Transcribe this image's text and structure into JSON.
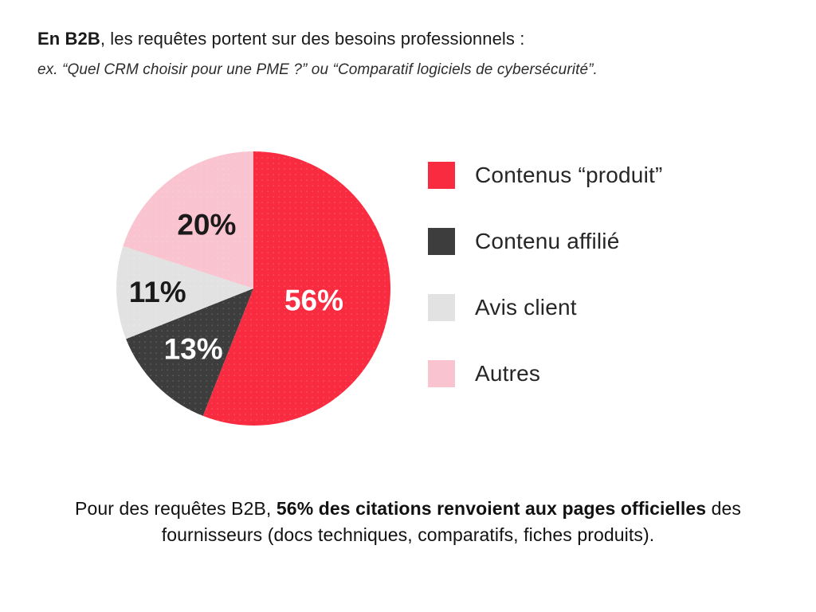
{
  "header": {
    "title_bold": "En B2B",
    "title_rest": ", les requêtes portent sur des besoins professionnels :",
    "subtitle": "ex. “Quel CRM choisir pour une PME ?” ou “Comparatif logiciels de cybersécurité”."
  },
  "chart_data": {
    "type": "pie",
    "direction": "clockwise",
    "start_angle_deg": 0,
    "legend_position": "right",
    "value_suffix": "%",
    "slices": [
      {
        "label": "Contenus “produit”",
        "value": 56,
        "color": "#F92B40",
        "label_color": "#ffffff",
        "label_r_frac": 0.45
      },
      {
        "label": "Contenu affilié",
        "value": 13,
        "color": "#3D3D3D",
        "label_color": "#ffffff",
        "label_r_frac": 0.62
      },
      {
        "label": "Avis client",
        "value": 11,
        "color": "#E2E2E2",
        "label_color": "#1a1a1a",
        "label_r_frac": 0.7
      },
      {
        "label": "Autres",
        "value": 20,
        "color": "#F9C3CF",
        "label_color": "#1a1a1a",
        "label_r_frac": 0.58
      }
    ]
  },
  "caption": {
    "pre": "Pour des requêtes B2B, ",
    "bold": "56% des citations renvoient aux pages officielles",
    "post": " des fournisseurs (docs techniques, comparatifs, fiches produits)."
  }
}
